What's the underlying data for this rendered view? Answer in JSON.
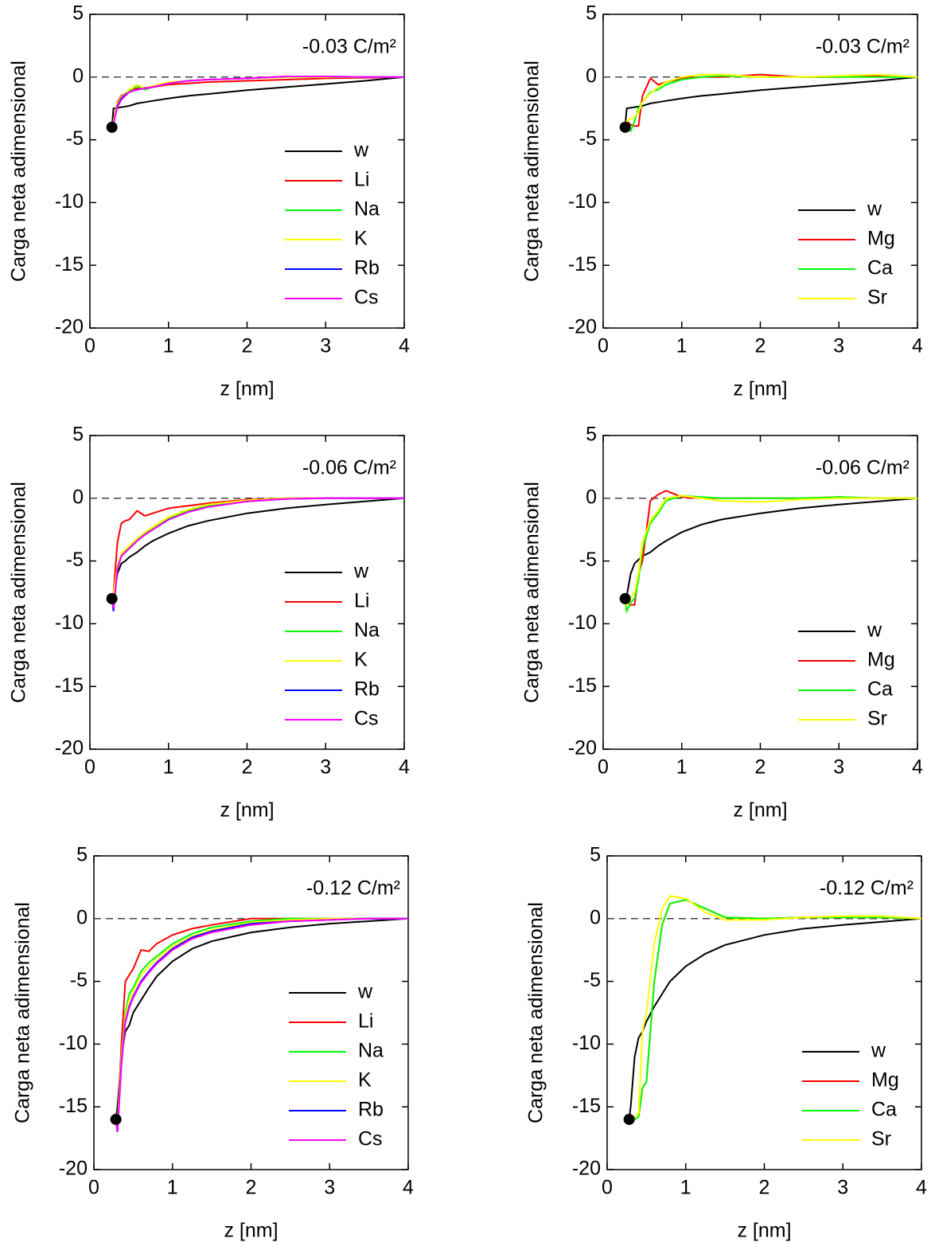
{
  "chart_data": [
    {
      "type": "line",
      "annotation": "-0.03 C/m²",
      "xlabel": "z [nm]",
      "ylabel": "Carga neta adimensional",
      "xlim": [
        0,
        4
      ],
      "ylim": [
        -20,
        5
      ],
      "xticks": [
        0,
        1,
        2,
        3,
        4
      ],
      "yticks": [
        -20,
        -15,
        -10,
        -5,
        0,
        5
      ],
      "hline": 0,
      "legend": "lower right",
      "start_point": {
        "x": 0.28,
        "y": -4
      },
      "x": [
        0.28,
        0.3,
        0.35,
        0.4,
        0.45,
        0.5,
        0.6,
        0.7,
        0.8,
        1,
        1.25,
        1.5,
        2,
        2.5,
        3,
        3.5,
        4
      ],
      "series": [
        {
          "name": "w",
          "color": "#000000",
          "values": [
            -4,
            -2.5,
            -2.45,
            -2.4,
            -2.35,
            -2.3,
            -2.1,
            -2.0,
            -1.9,
            -1.7,
            -1.5,
            -1.35,
            -1.05,
            -0.8,
            -0.55,
            -0.3,
            0
          ]
        },
        {
          "name": "Li",
          "color": "#ff0000",
          "values": [
            -4,
            -3.5,
            -2,
            -1.5,
            -1.3,
            -1.0,
            -0.9,
            -0.85,
            -0.8,
            -0.6,
            -0.5,
            -0.4,
            -0.3,
            -0.2,
            -0.1,
            -0.05,
            0
          ]
        },
        {
          "name": "Na",
          "color": "#00ff00",
          "values": [
            -4,
            -3.6,
            -2.2,
            -1.7,
            -1.4,
            -1.1,
            -0.7,
            -1.0,
            -0.8,
            -0.5,
            -0.3,
            -0.2,
            -0.1,
            0,
            0,
            0,
            0
          ]
        },
        {
          "name": "K",
          "color": "#ffff00",
          "values": [
            -4,
            -3.5,
            -2.1,
            -1.6,
            -1.3,
            -1.0,
            -0.6,
            -0.9,
            -0.7,
            -0.4,
            -0.3,
            -0.2,
            -0.1,
            0,
            0,
            0,
            0
          ]
        },
        {
          "name": "Rb",
          "color": "#0000ff",
          "values": [
            -4,
            -3.7,
            -2.3,
            -1.7,
            -1.4,
            -1.2,
            -1.0,
            -0.9,
            -0.8,
            -0.5,
            -0.3,
            -0.2,
            -0.1,
            0.05,
            0.05,
            0,
            0
          ]
        },
        {
          "name": "Cs",
          "color": "#ff00ff",
          "values": [
            -4,
            -3.7,
            -2.4,
            -1.8,
            -1.5,
            -1.2,
            -1.0,
            -0.9,
            -0.8,
            -0.5,
            -0.3,
            -0.2,
            -0.1,
            0.05,
            0.05,
            0,
            0
          ]
        }
      ]
    },
    {
      "type": "line",
      "annotation": "-0.03 C/m²",
      "xlabel": "z [nm]",
      "ylabel": "Carga neta adimensional",
      "xlim": [
        0,
        4
      ],
      "ylim": [
        -20,
        5
      ],
      "xticks": [
        0,
        1,
        2,
        3,
        4
      ],
      "yticks": [
        -20,
        -15,
        -10,
        -5,
        0,
        5
      ],
      "hline": 0,
      "legend": "lower right",
      "start_point": {
        "x": 0.28,
        "y": -4
      },
      "x": [
        0.28,
        0.3,
        0.35,
        0.4,
        0.45,
        0.5,
        0.6,
        0.7,
        0.8,
        1,
        1.25,
        1.5,
        2,
        2.5,
        3,
        3.5,
        4
      ],
      "series": [
        {
          "name": "w",
          "color": "#000000",
          "values": [
            -4,
            -2.5,
            -2.45,
            -2.4,
            -2.35,
            -2.3,
            -2.1,
            -2.0,
            -1.9,
            -1.7,
            -1.5,
            -1.35,
            -1.05,
            -0.8,
            -0.55,
            -0.3,
            0
          ]
        },
        {
          "name": "Mg",
          "color": "#ff0000",
          "values": [
            -4,
            -3.5,
            -3.8,
            -3.9,
            -3.9,
            -1.5,
            -0.1,
            -0.6,
            -0.4,
            -0.1,
            0,
            0,
            0.2,
            0,
            0,
            0.1,
            0
          ]
        },
        {
          "name": "Ca",
          "color": "#00ff00",
          "values": [
            -4,
            -3.8,
            -4.3,
            -3.5,
            -2.5,
            -2.0,
            -1.2,
            -1.0,
            -0.6,
            -0.2,
            0,
            0.1,
            0,
            0,
            0,
            0,
            0
          ]
        },
        {
          "name": "Sr",
          "color": "#ffff00",
          "values": [
            -4,
            -3.5,
            -3.3,
            -3.2,
            -2.8,
            -2.0,
            -1.3,
            -0.8,
            -0.4,
            0,
            0.2,
            0.2,
            0,
            0,
            0.1,
            0.2,
            0
          ]
        }
      ]
    },
    {
      "type": "line",
      "annotation": "-0.06 C/m²",
      "xlabel": "z [nm]",
      "ylabel": "Carga neta adimensional",
      "xlim": [
        0,
        4
      ],
      "ylim": [
        -20,
        5
      ],
      "xticks": [
        0,
        1,
        2,
        3,
        4
      ],
      "yticks": [
        -20,
        -15,
        -10,
        -5,
        0,
        5
      ],
      "hline": 0,
      "legend": "lower right",
      "start_point": {
        "x": 0.28,
        "y": -8
      },
      "x": [
        0.28,
        0.3,
        0.35,
        0.4,
        0.45,
        0.5,
        0.6,
        0.7,
        0.8,
        1,
        1.25,
        1.5,
        2,
        2.5,
        3,
        3.5,
        4
      ],
      "series": [
        {
          "name": "w",
          "color": "#000000",
          "values": [
            -8,
            -8,
            -6,
            -5.2,
            -5,
            -4.7,
            -4.3,
            -3.8,
            -3.4,
            -2.8,
            -2.2,
            -1.8,
            -1.2,
            -0.8,
            -0.5,
            -0.25,
            0
          ]
        },
        {
          "name": "Li",
          "color": "#ff0000",
          "values": [
            -8,
            -7.5,
            -3.5,
            -2,
            -1.8,
            -1.7,
            -1,
            -1.4,
            -1.2,
            -0.8,
            -0.6,
            -0.4,
            -0.1,
            0,
            0,
            0,
            0
          ]
        },
        {
          "name": "Na",
          "color": "#00ff00",
          "values": [
            -8,
            -7.7,
            -5.5,
            -4.5,
            -4.2,
            -3.9,
            -3.3,
            -2.8,
            -2.4,
            -1.6,
            -1,
            -0.6,
            -0.2,
            -0.05,
            0,
            0,
            0
          ]
        },
        {
          "name": "K",
          "color": "#ffff00",
          "values": [
            -8,
            -7.6,
            -5.4,
            -4.4,
            -4.1,
            -3.8,
            -3.2,
            -2.7,
            -2.3,
            -1.5,
            -0.9,
            -0.5,
            -0.15,
            0,
            0,
            0,
            0
          ]
        },
        {
          "name": "Rb",
          "color": "#0000ff",
          "values": [
            -8,
            -9,
            -5.6,
            -4.6,
            -4.3,
            -4.0,
            -3.4,
            -2.9,
            -2.5,
            -1.7,
            -1.1,
            -0.7,
            -0.25,
            -0.05,
            0,
            0,
            0
          ]
        },
        {
          "name": "Cs",
          "color": "#ff00ff",
          "values": [
            -8,
            -8.8,
            -5.6,
            -4.6,
            -4.3,
            -4.0,
            -3.4,
            -2.9,
            -2.5,
            -1.7,
            -1.1,
            -0.7,
            -0.25,
            -0.05,
            0,
            0,
            0
          ]
        }
      ]
    },
    {
      "type": "line",
      "annotation": "-0.06 C/m²",
      "xlabel": "z [nm]",
      "ylabel": "Carga neta adimensional",
      "xlim": [
        0,
        4
      ],
      "ylim": [
        -20,
        5
      ],
      "xticks": [
        0,
        1,
        2,
        3,
        4
      ],
      "yticks": [
        -20,
        -15,
        -10,
        -5,
        0,
        5
      ],
      "hline": 0,
      "legend": "lower right",
      "start_point": {
        "x": 0.28,
        "y": -8
      },
      "x": [
        0.28,
        0.3,
        0.35,
        0.4,
        0.45,
        0.5,
        0.6,
        0.7,
        0.8,
        1,
        1.25,
        1.5,
        2,
        2.5,
        3,
        3.5,
        4
      ],
      "series": [
        {
          "name": "w",
          "color": "#000000",
          "values": [
            -8,
            -7.8,
            -6,
            -5.2,
            -4.9,
            -4.6,
            -4.3,
            -3.8,
            -3.4,
            -2.7,
            -2.1,
            -1.7,
            -1.2,
            -0.8,
            -0.5,
            -0.25,
            0
          ]
        },
        {
          "name": "Mg",
          "color": "#ff0000",
          "values": [
            -8,
            -8.3,
            -8.5,
            -8.5,
            -6,
            -5,
            -0.2,
            0.3,
            0.6,
            0.1,
            0,
            0,
            0,
            0,
            0.1,
            0,
            0
          ]
        },
        {
          "name": "Ca",
          "color": "#00ff00",
          "values": [
            -8,
            -9,
            -8.3,
            -8,
            -6.5,
            -4,
            -2,
            -1.2,
            -0.2,
            0.2,
            0.1,
            0,
            0,
            0,
            0.1,
            0,
            0
          ]
        },
        {
          "name": "Sr",
          "color": "#ffff00",
          "values": [
            -8,
            -8.5,
            -8,
            -7.5,
            -6,
            -3.5,
            -1.8,
            -1,
            0,
            0.2,
            0,
            -0.2,
            -0.3,
            -0.1,
            0,
            0,
            0
          ]
        }
      ]
    },
    {
      "type": "line",
      "annotation": "-0.12 C/m²",
      "xlabel": "z [nm]",
      "ylabel": "Carga neta adimensional",
      "xlim": [
        0,
        4
      ],
      "ylim": [
        -20,
        5
      ],
      "xticks": [
        0,
        1,
        2,
        3,
        4
      ],
      "yticks": [
        -20,
        -15,
        -10,
        -5,
        0,
        5
      ],
      "hline": 0,
      "legend": "lower right",
      "start_point": {
        "x": 0.28,
        "y": -16
      },
      "x": [
        0.28,
        0.3,
        0.35,
        0.4,
        0.45,
        0.5,
        0.6,
        0.7,
        0.8,
        1,
        1.25,
        1.5,
        2,
        2.5,
        3,
        3.5,
        4
      ],
      "series": [
        {
          "name": "w",
          "color": "#000000",
          "values": [
            -16,
            -15,
            -11,
            -9,
            -8.5,
            -7.5,
            -6.5,
            -5.5,
            -4.6,
            -3.4,
            -2.4,
            -1.8,
            -1.1,
            -0.7,
            -0.4,
            -0.2,
            0
          ]
        },
        {
          "name": "Li",
          "color": "#ff0000",
          "values": [
            -16,
            -16.5,
            -10,
            -5,
            -4.5,
            -4,
            -2.5,
            -2.6,
            -2,
            -1.3,
            -0.8,
            -0.5,
            0,
            0,
            0,
            0,
            0
          ]
        },
        {
          "name": "Na",
          "color": "#00ff00",
          "values": [
            -16,
            -16.5,
            -11,
            -7.5,
            -6,
            -5.5,
            -4.2,
            -3.5,
            -3,
            -2,
            -1.2,
            -0.7,
            -0.2,
            0,
            0,
            0,
            0
          ]
        },
        {
          "name": "K",
          "color": "#ffff00",
          "values": [
            -16,
            -16.5,
            -11,
            -7.8,
            -6.5,
            -5.8,
            -4.5,
            -3.8,
            -3.2,
            -2.2,
            -1.4,
            -0.9,
            -0.3,
            -0.1,
            0,
            0,
            0
          ]
        },
        {
          "name": "Rb",
          "color": "#0000ff",
          "values": [
            -16,
            -17,
            -11.5,
            -8.2,
            -7,
            -6.2,
            -5,
            -4.2,
            -3.5,
            -2.4,
            -1.5,
            -1,
            -0.4,
            -0.2,
            -0.1,
            0,
            0
          ]
        },
        {
          "name": "Cs",
          "color": "#ff00ff",
          "values": [
            -16,
            -17,
            -11.7,
            -8.3,
            -7.1,
            -6.3,
            -5.1,
            -4.3,
            -3.6,
            -2.5,
            -1.6,
            -1.1,
            -0.5,
            -0.2,
            -0.1,
            0,
            0
          ]
        }
      ]
    },
    {
      "type": "line",
      "annotation": "-0.12 C/m²",
      "xlabel": "z [nm]",
      "ylabel": "Carga neta adimensional",
      "xlim": [
        0,
        4
      ],
      "ylim": [
        -20,
        5
      ],
      "xticks": [
        0,
        1,
        2,
        3,
        4
      ],
      "yticks": [
        -20,
        -15,
        -10,
        -5,
        0,
        5
      ],
      "hline": 0,
      "legend": "lower right",
      "start_point": {
        "x": 0.28,
        "y": -16
      },
      "x": [
        0.28,
        0.3,
        0.35,
        0.4,
        0.45,
        0.5,
        0.6,
        0.7,
        0.8,
        1,
        1.25,
        1.5,
        2,
        2.5,
        3,
        3.5,
        4
      ],
      "series": [
        {
          "name": "w",
          "color": "#000000",
          "values": [
            -16,
            -15,
            -11,
            -9.5,
            -9,
            -8.2,
            -7,
            -6,
            -5,
            -3.8,
            -2.8,
            -2.1,
            -1.3,
            -0.8,
            -0.5,
            -0.25,
            0
          ]
        },
        {
          "name": "Mg",
          "color": "#ff0000",
          "values": [
            -16,
            -16,
            -16,
            -15.8,
            -13.5,
            -13,
            -5,
            -0.5,
            1.2,
            1.5,
            0.8,
            0.1,
            0,
            0.1,
            0.1,
            0.1,
            0
          ]
        },
        {
          "name": "Ca",
          "color": "#00ff00",
          "values": [
            -16,
            -16,
            -16,
            -15.8,
            -13.5,
            -13,
            -5,
            -0.5,
            1.2,
            1.5,
            0.8,
            0.1,
            0,
            0.1,
            0.1,
            0.1,
            0
          ]
        },
        {
          "name": "Sr",
          "color": "#ffff00",
          "values": [
            -16,
            -16,
            -15.8,
            -15.5,
            -9,
            -7.5,
            -2,
            0.8,
            1.8,
            1.6,
            0.5,
            -0.1,
            -0.1,
            0.1,
            0.2,
            0.2,
            0
          ]
        }
      ]
    }
  ]
}
